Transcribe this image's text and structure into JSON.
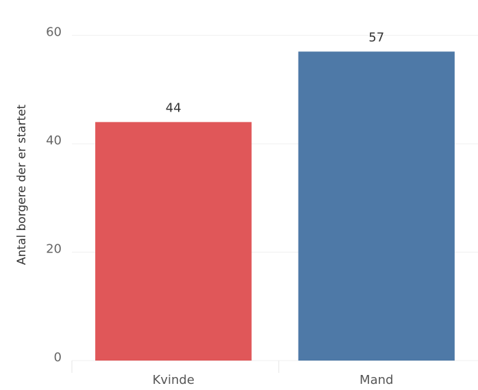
{
  "chart_data": {
    "type": "bar",
    "y_label": "Antal borgere der er startet",
    "categories": [
      "Kvinde",
      "Mand"
    ],
    "values": [
      44,
      57
    ],
    "colors": [
      "#e05759",
      "#4e79a7"
    ],
    "ylim": [
      0,
      65
    ],
    "yticks": [
      0,
      20,
      40,
      60
    ],
    "grid": true
  }
}
